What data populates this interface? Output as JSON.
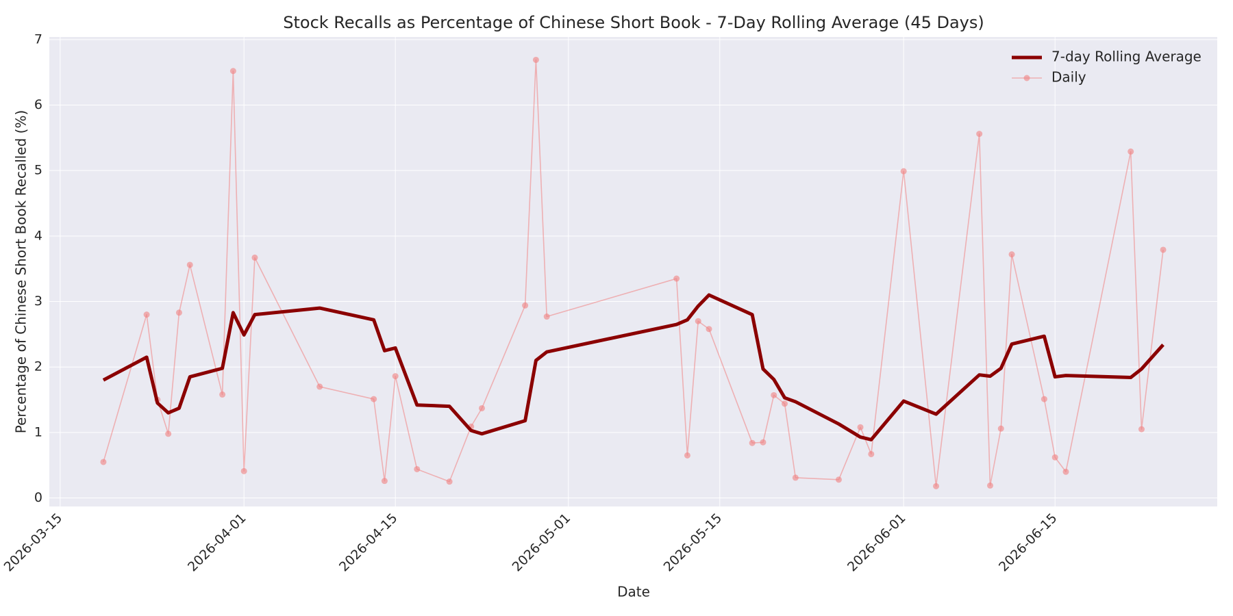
{
  "chart_data": {
    "type": "line",
    "title": "Stock Recalls as Percentage of Chinese Short Book - 7-Day Rolling Average (45 Days)",
    "x_label": "Date",
    "y_label": "Percentage of Chinese Short Book Recalled (%)",
    "x": [
      "2026-03-19",
      "2026-03-23",
      "2026-03-24",
      "2026-03-25",
      "2026-03-26",
      "2026-03-27",
      "2026-03-30",
      "2026-03-31",
      "2026-04-01",
      "2026-04-02",
      "2026-04-08",
      "2026-04-13",
      "2026-04-14",
      "2026-04-15",
      "2026-04-17",
      "2026-04-20",
      "2026-04-22",
      "2026-04-23",
      "2026-04-27",
      "2026-04-28",
      "2026-04-29",
      "2026-05-11",
      "2026-05-12",
      "2026-05-13",
      "2026-05-14",
      "2026-05-18",
      "2026-05-19",
      "2026-05-20",
      "2026-05-21",
      "2026-05-22",
      "2026-05-26",
      "2026-05-28",
      "2026-05-29",
      "2026-06-01",
      "2026-06-04",
      "2026-06-08",
      "2026-06-09",
      "2026-06-10",
      "2026-06-11",
      "2026-06-14",
      "2026-06-15",
      "2026-06-16",
      "2026-06-22",
      "2026-06-23",
      "2026-06-25"
    ],
    "series": [
      {
        "name": "7-day Rolling Average",
        "color": "#8b0000",
        "values": [
          1.8,
          2.15,
          1.45,
          1.3,
          1.37,
          1.85,
          1.98,
          2.83,
          2.49,
          2.8,
          2.9,
          2.72,
          2.25,
          2.29,
          1.42,
          1.4,
          1.03,
          0.98,
          1.18,
          2.1,
          2.23,
          2.65,
          2.72,
          2.93,
          3.1,
          2.8,
          1.97,
          1.81,
          1.53,
          1.47,
          1.13,
          0.93,
          0.89,
          1.48,
          1.28,
          1.88,
          1.86,
          1.98,
          2.35,
          2.47,
          1.85,
          1.87,
          1.84,
          1.97,
          2.34
        ]
      },
      {
        "name": "Daily",
        "color": "#f08080",
        "markers": true,
        "values": [
          0.55,
          2.8,
          1.5,
          0.98,
          2.83,
          3.56,
          1.58,
          6.52,
          0.41,
          3.67,
          1.7,
          1.51,
          0.26,
          1.86,
          0.44,
          0.25,
          1.09,
          1.37,
          2.94,
          6.69,
          2.77,
          3.35,
          0.65,
          2.7,
          2.58,
          0.84,
          0.85,
          1.57,
          1.44,
          0.31,
          0.28,
          1.08,
          0.67,
          4.99,
          0.18,
          5.56,
          0.19,
          1.06,
          3.72,
          1.51,
          0.62,
          0.4,
          5.29,
          1.05,
          3.79
        ]
      }
    ],
    "xlim": [
      "2026-03-14",
      "2026-06-30"
    ],
    "xticks": [
      "2026-03-15",
      "2026-04-01",
      "2026-04-15",
      "2026-05-01",
      "2026-05-15",
      "2026-06-01",
      "2026-06-15"
    ],
    "ylim": [
      -0.13,
      7.04
    ],
    "yticks": [
      0,
      1,
      2,
      3,
      4,
      5,
      6,
      7
    ],
    "grid": true,
    "legend": "upper right"
  }
}
